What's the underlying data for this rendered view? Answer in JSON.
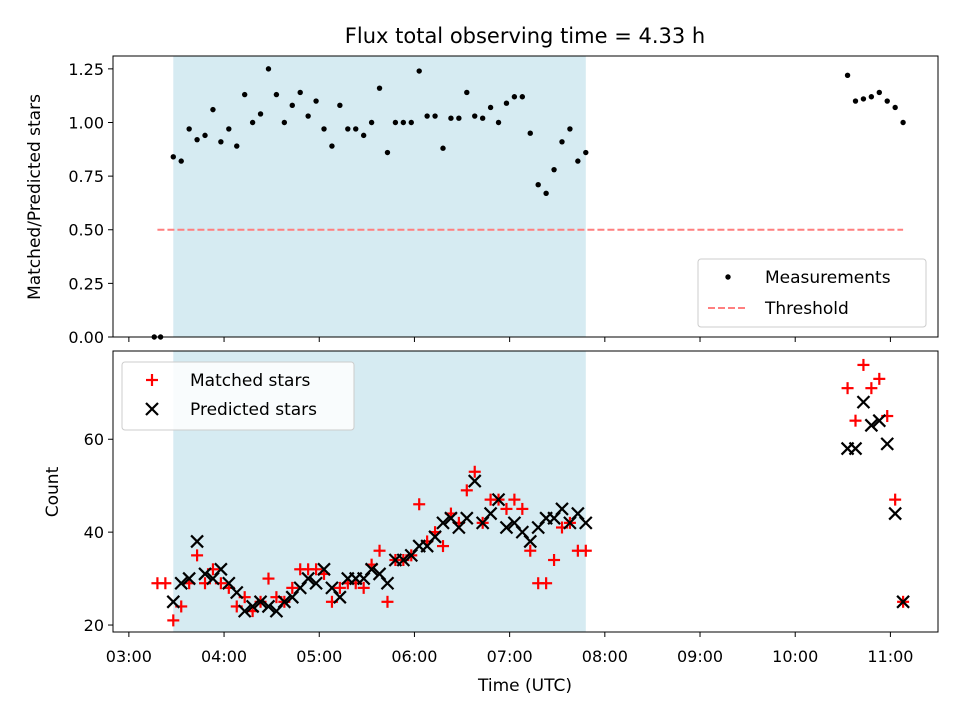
{
  "chart_data": [
    {
      "type": "scatter",
      "title": "Flux total observing time = 4.33 h",
      "xlabel": "",
      "ylabel": "Matched/Predicted stars",
      "yticks": [
        "0.00",
        "0.25",
        "0.50",
        "0.75",
        "1.00",
        "1.25"
      ],
      "ylim": [
        0,
        1.31
      ],
      "xlim": [
        "03:00",
        "11:30"
      ],
      "shaded_span": [
        "03:28",
        "07:48"
      ],
      "shade_color": "#add8e6",
      "legend": {
        "position": "bottom-right",
        "entries": [
          "Measurements",
          "Threshold"
        ]
      },
      "series": [
        {
          "name": "Measurements",
          "color": "#000000",
          "marker": "dot",
          "points": [
            [
              "03:16",
              0.0
            ],
            [
              "03:20",
              0.0
            ],
            [
              "03:28",
              0.84
            ],
            [
              "03:33",
              0.82
            ],
            [
              "03:38",
              0.97
            ],
            [
              "03:43",
              0.92
            ],
            [
              "03:48",
              0.94
            ],
            [
              "03:53",
              1.06
            ],
            [
              "03:58",
              0.91
            ],
            [
              "04:03",
              0.97
            ],
            [
              "04:08",
              0.89
            ],
            [
              "04:13",
              1.13
            ],
            [
              "04:18",
              1.0
            ],
            [
              "04:23",
              1.04
            ],
            [
              "04:28",
              1.25
            ],
            [
              "04:33",
              1.13
            ],
            [
              "04:38",
              1.0
            ],
            [
              "04:43",
              1.08
            ],
            [
              "04:48",
              1.14
            ],
            [
              "04:53",
              1.03
            ],
            [
              "04:58",
              1.1
            ],
            [
              "05:03",
              0.97
            ],
            [
              "05:08",
              0.89
            ],
            [
              "05:13",
              1.08
            ],
            [
              "05:18",
              0.97
            ],
            [
              "05:23",
              0.97
            ],
            [
              "05:28",
              0.94
            ],
            [
              "05:33",
              1.0
            ],
            [
              "05:38",
              1.16
            ],
            [
              "05:43",
              0.86
            ],
            [
              "05:48",
              1.0
            ],
            [
              "05:53",
              1.0
            ],
            [
              "05:58",
              1.0
            ],
            [
              "06:03",
              1.24
            ],
            [
              "06:08",
              1.03
            ],
            [
              "06:13",
              1.03
            ],
            [
              "06:18",
              0.88
            ],
            [
              "06:23",
              1.02
            ],
            [
              "06:28",
              1.02
            ],
            [
              "06:33",
              1.14
            ],
            [
              "06:38",
              1.03
            ],
            [
              "06:43",
              1.02
            ],
            [
              "06:48",
              1.07
            ],
            [
              "06:53",
              1.0
            ],
            [
              "06:58",
              1.09
            ],
            [
              "07:03",
              1.12
            ],
            [
              "07:08",
              1.12
            ],
            [
              "07:13",
              0.95
            ],
            [
              "07:18",
              0.71
            ],
            [
              "07:23",
              0.67
            ],
            [
              "07:28",
              0.78
            ],
            [
              "07:33",
              0.91
            ],
            [
              "07:38",
              0.97
            ],
            [
              "07:43",
              0.82
            ],
            [
              "07:48",
              0.86
            ],
            [
              "10:33",
              1.22
            ],
            [
              "10:38",
              1.1
            ],
            [
              "10:43",
              1.11
            ],
            [
              "10:48",
              1.12
            ],
            [
              "10:53",
              1.14
            ],
            [
              "10:58",
              1.1
            ],
            [
              "11:03",
              1.07
            ],
            [
              "11:08",
              1.0
            ]
          ]
        },
        {
          "name": "Threshold",
          "color": "#ff7f7f",
          "line": "dashed",
          "points": [
            [
              "03:18",
              0.5
            ],
            [
              "11:08",
              0.5
            ]
          ]
        }
      ]
    },
    {
      "type": "scatter",
      "title": "",
      "xlabel": "Time (UTC)",
      "ylabel": "Count",
      "yticks": [
        "20",
        "40",
        "60"
      ],
      "ylim": [
        18.5,
        79
      ],
      "xticks": [
        "03:00",
        "04:00",
        "05:00",
        "06:00",
        "07:00",
        "08:00",
        "09:00",
        "10:00",
        "11:00"
      ],
      "xlim": [
        "03:00",
        "11:30"
      ],
      "shaded_span": [
        "03:28",
        "07:48"
      ],
      "shade_color": "#add8e6",
      "legend": {
        "position": "top-left",
        "entries": [
          "Matched stars",
          "Predicted stars"
        ]
      },
      "series": [
        {
          "name": "Matched stars",
          "color": "#ff0000",
          "marker": "plus",
          "points": [
            [
              "03:18",
              29
            ],
            [
              "03:23",
              29
            ],
            [
              "03:28",
              21
            ],
            [
              "03:33",
              24
            ],
            [
              "03:38",
              29
            ],
            [
              "03:43",
              35
            ],
            [
              "03:48",
              29
            ],
            [
              "03:53",
              32
            ],
            [
              "03:58",
              29
            ],
            [
              "04:03",
              28
            ],
            [
              "04:08",
              24
            ],
            [
              "04:13",
              26
            ],
            [
              "04:18",
              23
            ],
            [
              "04:23",
              25
            ],
            [
              "04:28",
              30
            ],
            [
              "04:33",
              26
            ],
            [
              "04:38",
              25
            ],
            [
              "04:43",
              28
            ],
            [
              "04:48",
              32
            ],
            [
              "04:53",
              32
            ],
            [
              "04:58",
              32
            ],
            [
              "05:03",
              31
            ],
            [
              "05:08",
              25
            ],
            [
              "05:13",
              28
            ],
            [
              "05:18",
              29
            ],
            [
              "05:23",
              29
            ],
            [
              "05:28",
              28
            ],
            [
              "05:33",
              33
            ],
            [
              "05:38",
              36
            ],
            [
              "05:43",
              25
            ],
            [
              "05:48",
              34
            ],
            [
              "05:53",
              34
            ],
            [
              "05:58",
              35
            ],
            [
              "06:03",
              46
            ],
            [
              "06:08",
              38
            ],
            [
              "06:13",
              40
            ],
            [
              "06:18",
              37
            ],
            [
              "06:23",
              44
            ],
            [
              "06:28",
              42
            ],
            [
              "06:33",
              49
            ],
            [
              "06:38",
              53
            ],
            [
              "06:43",
              42
            ],
            [
              "06:48",
              47
            ],
            [
              "06:53",
              47
            ],
            [
              "06:58",
              45
            ],
            [
              "07:03",
              47
            ],
            [
              "07:08",
              45
            ],
            [
              "07:13",
              36
            ],
            [
              "07:18",
              29
            ],
            [
              "07:23",
              29
            ],
            [
              "07:28",
              34
            ],
            [
              "07:33",
              41
            ],
            [
              "07:38",
              42
            ],
            [
              "07:43",
              36
            ],
            [
              "07:48",
              36
            ],
            [
              "10:33",
              71
            ],
            [
              "10:38",
              64
            ],
            [
              "10:43",
              76
            ],
            [
              "10:48",
              71
            ],
            [
              "10:53",
              73
            ],
            [
              "10:58",
              65
            ],
            [
              "11:03",
              47
            ],
            [
              "11:08",
              25
            ]
          ]
        },
        {
          "name": "Predicted stars",
          "color": "#000000",
          "marker": "x",
          "points": [
            [
              "03:28",
              25
            ],
            [
              "03:33",
              29
            ],
            [
              "03:38",
              30
            ],
            [
              "03:43",
              38
            ],
            [
              "03:48",
              31
            ],
            [
              "03:53",
              30
            ],
            [
              "03:58",
              32
            ],
            [
              "04:03",
              29
            ],
            [
              "04:08",
              27
            ],
            [
              "04:13",
              23
            ],
            [
              "04:18",
              24
            ],
            [
              "04:23",
              25
            ],
            [
              "04:28",
              24
            ],
            [
              "04:33",
              23
            ],
            [
              "04:38",
              25
            ],
            [
              "04:43",
              26
            ],
            [
              "04:48",
              28
            ],
            [
              "04:53",
              30
            ],
            [
              "04:58",
              29
            ],
            [
              "05:03",
              32
            ],
            [
              "05:08",
              28
            ],
            [
              "05:13",
              26
            ],
            [
              "05:18",
              30
            ],
            [
              "05:23",
              30
            ],
            [
              "05:28",
              30
            ],
            [
              "05:33",
              32
            ],
            [
              "05:38",
              31
            ],
            [
              "05:43",
              29
            ],
            [
              "05:48",
              34
            ],
            [
              "05:53",
              34
            ],
            [
              "05:58",
              35
            ],
            [
              "06:03",
              37
            ],
            [
              "06:08",
              37
            ],
            [
              "06:13",
              39
            ],
            [
              "06:18",
              42
            ],
            [
              "06:23",
              43
            ],
            [
              "06:28",
              41
            ],
            [
              "06:33",
              43
            ],
            [
              "06:38",
              51
            ],
            [
              "06:43",
              42
            ],
            [
              "06:48",
              44
            ],
            [
              "06:53",
              47
            ],
            [
              "06:58",
              41
            ],
            [
              "07:03",
              42
            ],
            [
              "07:08",
              40
            ],
            [
              "07:13",
              38
            ],
            [
              "07:18",
              41
            ],
            [
              "07:23",
              43
            ],
            [
              "07:28",
              43
            ],
            [
              "07:33",
              45
            ],
            [
              "07:38",
              42
            ],
            [
              "07:43",
              44
            ],
            [
              "07:48",
              42
            ],
            [
              "10:33",
              58
            ],
            [
              "10:38",
              58
            ],
            [
              "10:43",
              68
            ],
            [
              "10:48",
              63
            ],
            [
              "10:53",
              64
            ],
            [
              "10:58",
              59
            ],
            [
              "11:03",
              44
            ],
            [
              "11:08",
              25
            ]
          ]
        }
      ]
    }
  ]
}
